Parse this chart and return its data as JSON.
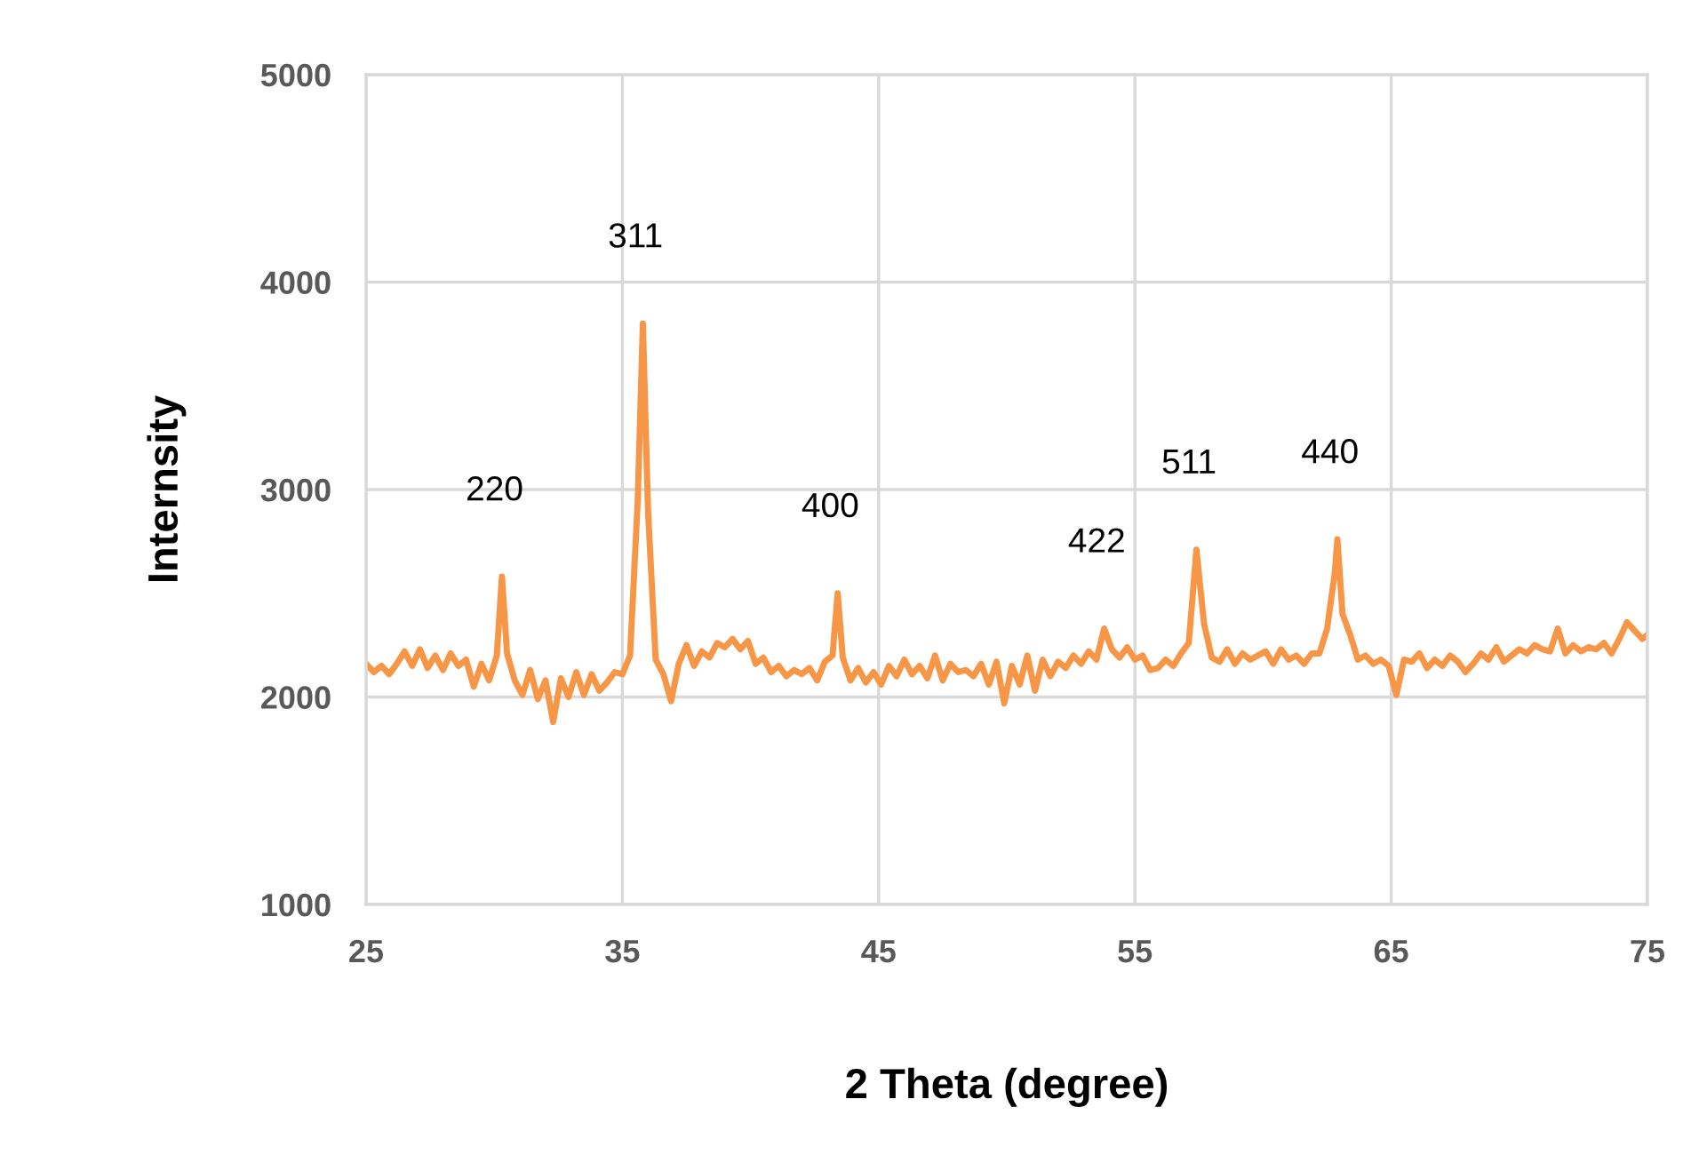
{
  "chart_data": {
    "type": "line",
    "xlabel": "2 Theta (degree)",
    "ylabel": "Internsity",
    "xlim": [
      25,
      75
    ],
    "ylim": [
      1000,
      5000
    ],
    "xticks": [
      25,
      35,
      45,
      55,
      65,
      75
    ],
    "yticks": [
      1000,
      2000,
      3000,
      4000,
      5000
    ],
    "grid": true,
    "legend": false,
    "marker": "none",
    "line_style": "solid",
    "series": [
      {
        "color": "#f79646",
        "x": [
          25,
          25.3,
          25.6,
          25.9,
          26.2,
          26.5,
          26.8,
          27.1,
          27.4,
          27.7,
          28,
          28.3,
          28.6,
          28.9,
          29.2,
          29.5,
          29.8,
          30.1,
          30.3,
          30.5,
          30.8,
          31.1,
          31.4,
          31.7,
          32,
          32.3,
          32.6,
          32.9,
          33.2,
          33.5,
          33.8,
          34.1,
          34.4,
          34.7,
          35,
          35.3,
          35.6,
          35.8,
          36,
          36.3,
          36.6,
          36.9,
          37.2,
          37.5,
          37.8,
          38.1,
          38.4,
          38.7,
          39,
          39.3,
          39.6,
          39.9,
          40.2,
          40.5,
          40.8,
          41.1,
          41.4,
          41.7,
          42,
          42.3,
          42.6,
          42.9,
          43.2,
          43.4,
          43.6,
          43.9,
          44.2,
          44.5,
          44.8,
          45.1,
          45.4,
          45.7,
          46,
          46.3,
          46.6,
          46.9,
          47.2,
          47.5,
          47.8,
          48.1,
          48.4,
          48.7,
          49,
          49.3,
          49.6,
          49.9,
          50.2,
          50.5,
          50.8,
          51.1,
          51.4,
          51.7,
          52,
          52.3,
          52.6,
          52.9,
          53.2,
          53.5,
          53.8,
          54.1,
          54.4,
          54.7,
          55,
          55.3,
          55.6,
          55.9,
          56.2,
          56.5,
          56.8,
          57.1,
          57.4,
          57.7,
          58,
          58.3,
          58.6,
          58.9,
          59.2,
          59.5,
          59.8,
          60.1,
          60.4,
          60.7,
          61,
          61.3,
          61.6,
          61.9,
          62.2,
          62.5,
          62.8,
          62.9,
          63.1,
          63.4,
          63.7,
          64,
          64.3,
          64.6,
          64.9,
          65.2,
          65.5,
          65.8,
          66.1,
          66.4,
          66.7,
          67,
          67.3,
          67.6,
          67.9,
          68.2,
          68.5,
          68.8,
          69.1,
          69.4,
          69.7,
          70,
          70.3,
          70.6,
          70.9,
          71.2,
          71.5,
          71.8,
          72.1,
          72.4,
          72.7,
          73,
          73.3,
          73.6,
          73.9,
          74.2,
          74.5,
          74.8,
          75
        ],
        "values": [
          2160,
          2120,
          2150,
          2110,
          2160,
          2220,
          2150,
          2230,
          2140,
          2200,
          2130,
          2210,
          2150,
          2180,
          2050,
          2160,
          2080,
          2200,
          2580,
          2210,
          2080,
          2010,
          2130,
          1990,
          2080,
          1880,
          2090,
          2000,
          2120,
          2010,
          2110,
          2030,
          2070,
          2120,
          2110,
          2200,
          2950,
          3800,
          2900,
          2180,
          2110,
          1980,
          2160,
          2250,
          2150,
          2220,
          2190,
          2260,
          2240,
          2280,
          2230,
          2270,
          2160,
          2190,
          2120,
          2150,
          2100,
          2130,
          2110,
          2140,
          2080,
          2170,
          2200,
          2500,
          2190,
          2080,
          2140,
          2070,
          2120,
          2060,
          2150,
          2100,
          2180,
          2110,
          2150,
          2090,
          2200,
          2080,
          2160,
          2120,
          2130,
          2100,
          2160,
          2060,
          2170,
          1970,
          2150,
          2060,
          2200,
          2030,
          2180,
          2100,
          2170,
          2140,
          2200,
          2160,
          2220,
          2180,
          2330,
          2230,
          2190,
          2240,
          2180,
          2200,
          2130,
          2140,
          2180,
          2150,
          2210,
          2260,
          2710,
          2350,
          2190,
          2170,
          2230,
          2160,
          2210,
          2180,
          2200,
          2220,
          2160,
          2230,
          2180,
          2200,
          2160,
          2210,
          2210,
          2330,
          2600,
          2760,
          2400,
          2300,
          2180,
          2200,
          2160,
          2180,
          2150,
          2010,
          2180,
          2170,
          2210,
          2140,
          2180,
          2150,
          2200,
          2170,
          2120,
          2160,
          2210,
          2180,
          2240,
          2170,
          2200,
          2230,
          2210,
          2250,
          2230,
          2220,
          2330,
          2210,
          2250,
          2220,
          2240,
          2230,
          2260,
          2210,
          2280,
          2360,
          2320,
          2280,
          2300
        ]
      }
    ],
    "annotations": [
      {
        "text": "220",
        "x": 30.3,
        "y": 2580
      },
      {
        "text": "311",
        "x": 35.8,
        "y": 3800
      },
      {
        "text": "400",
        "x": 43.4,
        "y": 2500
      },
      {
        "text": "422",
        "x": 53.8,
        "y": 2330
      },
      {
        "text": "511",
        "x": 57.4,
        "y": 2710
      },
      {
        "text": "440",
        "x": 62.9,
        "y": 2760
      }
    ]
  }
}
